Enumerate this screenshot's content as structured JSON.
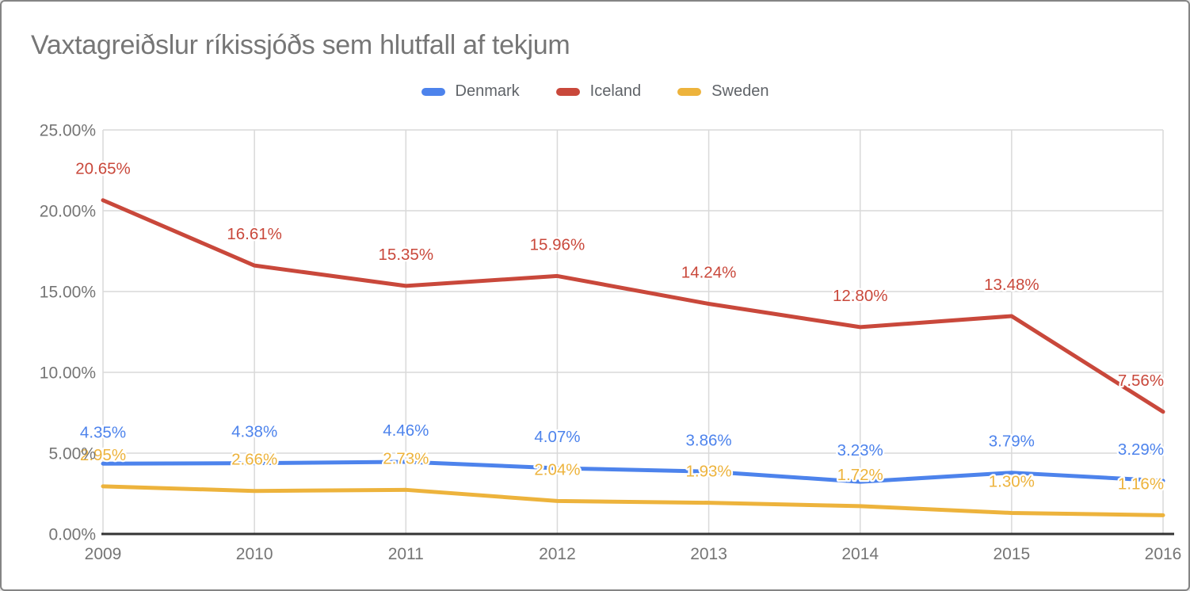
{
  "header": {
    "title": "Vaxtagreiðslur ríkissjóðs sem hlutfall af tekjum"
  },
  "chart_data": {
    "type": "line",
    "title": "Vaxtagreiðslur ríkissjóðs sem hlutfall af tekjum",
    "categories": [
      "2009",
      "2010",
      "2011",
      "2012",
      "2013",
      "2014",
      "2015",
      "2016"
    ],
    "series": [
      {
        "name": "Denmark",
        "color": "#4d83ec",
        "values": [
          4.35,
          4.38,
          4.46,
          4.07,
          3.86,
          3.23,
          3.79,
          3.29
        ],
        "labels": [
          "4.35%",
          "4.38%",
          "4.46%",
          "4.07%",
          "3.86%",
          "3.23%",
          "3.79%",
          "3.29%"
        ]
      },
      {
        "name": "Iceland",
        "color": "#c9483b",
        "values": [
          20.65,
          16.61,
          15.35,
          15.96,
          14.24,
          12.8,
          13.48,
          7.56
        ],
        "labels": [
          "20.65%",
          "16.61%",
          "15.35%",
          "15.96%",
          "14.24%",
          "12.80%",
          "13.48%",
          "7.56%"
        ]
      },
      {
        "name": "Sweden",
        "color": "#edb33c",
        "values": [
          2.95,
          2.66,
          2.73,
          2.04,
          1.93,
          1.72,
          1.3,
          1.16
        ],
        "labels": [
          "2.95%",
          "2.66%",
          "2.73%",
          "2.04%",
          "1.93%",
          "1.72%",
          "1.30%",
          "1.16%"
        ]
      }
    ],
    "y_ticks": [
      {
        "value": 0,
        "label": "0.00%"
      },
      {
        "value": 5,
        "label": "5.00%"
      },
      {
        "value": 10,
        "label": "10.00%"
      },
      {
        "value": 15,
        "label": "15.00%"
      },
      {
        "value": 20,
        "label": "20.00%"
      },
      {
        "value": 25,
        "label": "25.00%"
      }
    ],
    "ylim": [
      0,
      25
    ],
    "xlabel": "",
    "ylabel": "",
    "grid": true,
    "legend_position": "top",
    "colors": {
      "axis_text": "#757575",
      "gridline": "#d9d9d9",
      "baseline": "#333333",
      "title_text": "#767676"
    }
  }
}
